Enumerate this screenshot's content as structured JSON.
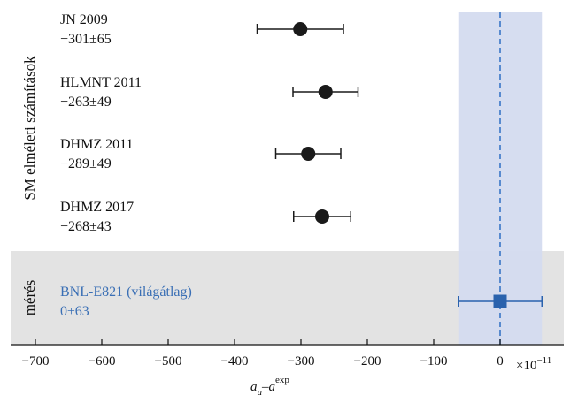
{
  "chart_data": {
    "type": "scatter",
    "xlabel": "a_μ − a_μ^exp",
    "xlabel_parts": {
      "base": "a",
      "sub1": "μ",
      "dash": "–",
      "base2": "a",
      "sub2": "μ",
      "sup2": "exp"
    },
    "x_multiplier": "×10",
    "x_multiplier_exp": "−11",
    "xlim": [
      -730,
      100
    ],
    "x_ticks": [
      -700,
      -600,
      -500,
      -400,
      -300,
      -200,
      -100,
      0
    ],
    "x_tick_labels": [
      "−700",
      "−600",
      "−500",
      "−400",
      "−300",
      "−200",
      "−100",
      "0"
    ],
    "groups": {
      "theory": "SM elméleti számítások",
      "measurement": "mérés"
    },
    "band": {
      "center": 0,
      "half_width": 63,
      "color": "#d4dbef"
    },
    "points": [
      {
        "name": "JN 2009",
        "value_text": "−301±65",
        "value": -301,
        "error": 65,
        "group": "theory",
        "marker": "circle"
      },
      {
        "name": "HLMNT 2011",
        "value_text": "−263±49",
        "value": -263,
        "error": 49,
        "group": "theory",
        "marker": "circle"
      },
      {
        "name": "DHMZ 2011",
        "value_text": "−289±49",
        "value": -289,
        "error": 49,
        "group": "theory",
        "marker": "circle"
      },
      {
        "name": "DHMZ 2017",
        "value_text": "−268±43",
        "value": -268,
        "error": 43,
        "group": "theory",
        "marker": "circle"
      },
      {
        "name": "BNL-E821 (világátlag)",
        "value_text": "0±63",
        "value": 0,
        "error": 63,
        "group": "measurement",
        "marker": "square"
      }
    ],
    "colors": {
      "theory_marker": "#1a1a1a",
      "measurement_marker": "#2a62ad",
      "measurement_text": "#3a6fb5",
      "measurement_bg": "#e3e3e3",
      "zero_line": "#2f6fc4"
    }
  }
}
